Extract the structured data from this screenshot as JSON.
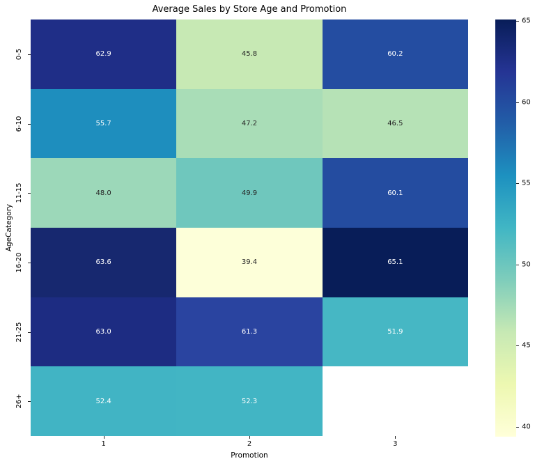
{
  "figure": {
    "background": "#ffffff"
  },
  "chart_data": {
    "type": "heatmap",
    "title": "Average Sales by Store Age and Promotion",
    "xlabel": "Promotion",
    "ylabel": "AgeCategory",
    "x_categories": [
      "1",
      "2",
      "3"
    ],
    "y_categories": [
      "0-5",
      "6-10",
      "11-15",
      "16-20",
      "21-25",
      "26+"
    ],
    "values": [
      [
        62.9,
        45.8,
        60.2
      ],
      [
        55.7,
        47.2,
        46.5
      ],
      [
        48.0,
        49.9,
        60.1
      ],
      [
        63.6,
        39.4,
        65.1
      ],
      [
        63.0,
        61.3,
        51.9
      ],
      [
        52.4,
        52.3,
        null
      ]
    ],
    "cell_labels": [
      [
        "62.9",
        "45.8",
        "60.2"
      ],
      [
        "55.7",
        "47.2",
        "46.5"
      ],
      [
        "48.0",
        "49.9",
        "60.1"
      ],
      [
        "63.6",
        "39.4",
        "65.1"
      ],
      [
        "63.0",
        "61.3",
        "51.9"
      ],
      [
        "52.4",
        "52.3",
        ""
      ]
    ],
    "cell_colors": [
      [
        "#1f2e87",
        "#c7e9b4",
        "#244da1"
      ],
      [
        "#1e8ebe",
        "#a9ddb7",
        "#b6e2b6"
      ],
      [
        "#9cd8b9",
        "#6fc7bd",
        "#244ca0"
      ],
      [
        "#17286f",
        "#fdffd9",
        "#081d58"
      ],
      [
        "#1d2c82",
        "#2a44a0",
        "#46b7c4"
      ],
      [
        "#41b4c4",
        "#42b5c4",
        "#ffffff"
      ]
    ],
    "cell_text_colors": [
      [
        "#ffffff",
        "#262626",
        "#ffffff"
      ],
      [
        "#ffffff",
        "#262626",
        "#262626"
      ],
      [
        "#262626",
        "#262626",
        "#ffffff"
      ],
      [
        "#ffffff",
        "#262626",
        "#ffffff"
      ],
      [
        "#ffffff",
        "#ffffff",
        "#ffffff"
      ],
      [
        "#ffffff",
        "#ffffff",
        ""
      ]
    ],
    "missing_cell": {
      "row": "26+",
      "column": "3",
      "color": "#ffffff"
    },
    "colormap": "YlGnBu",
    "colormap_gradient_top_to_bottom": [
      "#081d58",
      "#253494",
      "#225ea8",
      "#1d91c0",
      "#41b6c4",
      "#7fcdbb",
      "#c7e9b4",
      "#edf8b1",
      "#ffffd9"
    ],
    "vmin": 39.4,
    "vmax": 65.1,
    "colorbar_ticks": [
      65,
      60,
      55,
      50,
      45,
      40
    ],
    "legend_position": "right-colorbar",
    "grid": "off",
    "tick_color": "#262626",
    "text_color": "#000000"
  }
}
